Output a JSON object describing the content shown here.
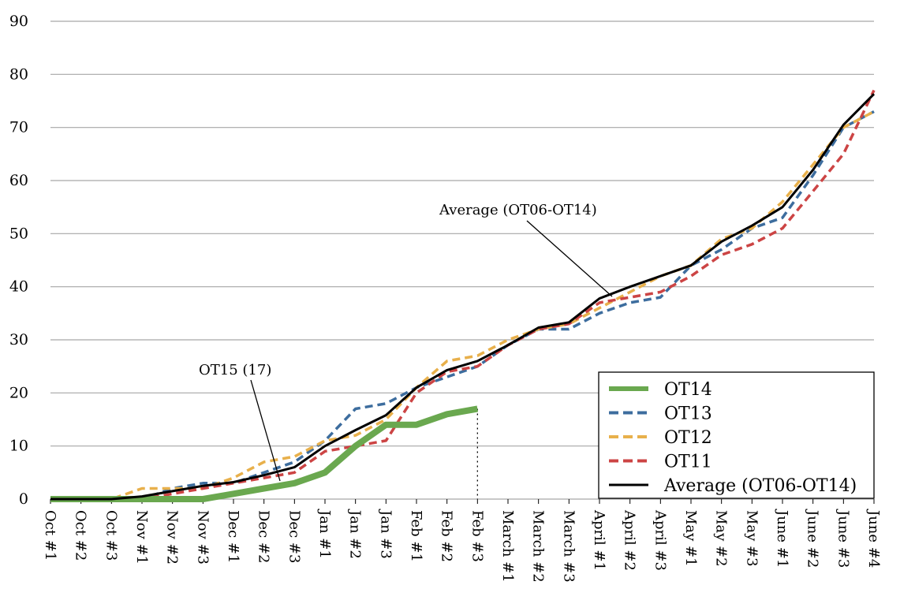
{
  "chart_data": {
    "type": "line",
    "title": "",
    "xlabel": "",
    "ylabel": "",
    "ylim": [
      0,
      90
    ],
    "yticks": [
      0,
      10,
      20,
      30,
      40,
      50,
      60,
      70,
      80,
      90
    ],
    "grid": true,
    "legend_position": "bottom-right",
    "categories": [
      "Oct #1",
      "Oct #2",
      "Oct #3",
      "Nov #1",
      "Nov #2",
      "Nov #3",
      "Dec #1",
      "Dec #2",
      "Dec #3",
      "Jan #1",
      "Jan #2",
      "Jan #3",
      "Feb #1",
      "Feb #2",
      "Feb #3",
      "March #1",
      "March #2",
      "March #3",
      "April #1",
      "April #2",
      "April #3",
      "May #1",
      "May #2",
      "May #3",
      "June #1",
      "June #2",
      "June #3",
      "June #4"
    ],
    "series": [
      {
        "name": "OT14",
        "color": "#6aa84f",
        "style": "solid-thick",
        "values": [
          0,
          0,
          0,
          0,
          0,
          0,
          1,
          2,
          3,
          5,
          10,
          14,
          14,
          16,
          17,
          null,
          null,
          null,
          null,
          null,
          null,
          null,
          null,
          null,
          null,
          null,
          null,
          null
        ]
      },
      {
        "name": "OT13",
        "color": "#3d6d9e",
        "style": "dashed",
        "values": [
          0,
          0,
          0,
          0,
          2,
          3,
          3,
          5,
          7,
          11,
          17,
          18,
          21,
          23,
          25,
          29,
          32,
          32,
          35,
          37,
          38,
          44,
          47,
          51,
          53,
          61,
          70,
          73
        ]
      },
      {
        "name": "OT12",
        "color": "#e8b04b",
        "style": "dashed",
        "values": [
          0,
          0,
          0,
          2,
          2,
          2,
          4,
          7,
          8,
          11,
          12,
          15,
          21,
          26,
          27,
          30,
          32,
          33,
          36,
          39,
          42,
          44,
          49,
          51,
          56,
          63,
          70,
          73
        ]
      },
      {
        "name": "OT11",
        "color": "#cc4444",
        "style": "dashed",
        "values": [
          0,
          0,
          0,
          0,
          1,
          2,
          3,
          4,
          5,
          9,
          10,
          11,
          20,
          24,
          25,
          29,
          32,
          33,
          37,
          38,
          39,
          42,
          46,
          48,
          51,
          58,
          65,
          77
        ]
      },
      {
        "name": "Average (OT06-OT14)",
        "color": "#000000",
        "style": "solid",
        "values": [
          0,
          0,
          0,
          0.5,
          1.5,
          2.5,
          3.2,
          4.5,
          6,
          10,
          13,
          15.8,
          21,
          24.3,
          26,
          29,
          32.3,
          33.3,
          37.8,
          40,
          42,
          44,
          48.5,
          51.5,
          55,
          62,
          70.5,
          76.3
        ]
      }
    ],
    "annotations": [
      {
        "text": "OT15 (17)",
        "target_category": "Dec #2"
      },
      {
        "text": "Average (OT06-OT14)",
        "target_category": "April #1"
      }
    ],
    "marker_line_category": "Feb #3"
  }
}
